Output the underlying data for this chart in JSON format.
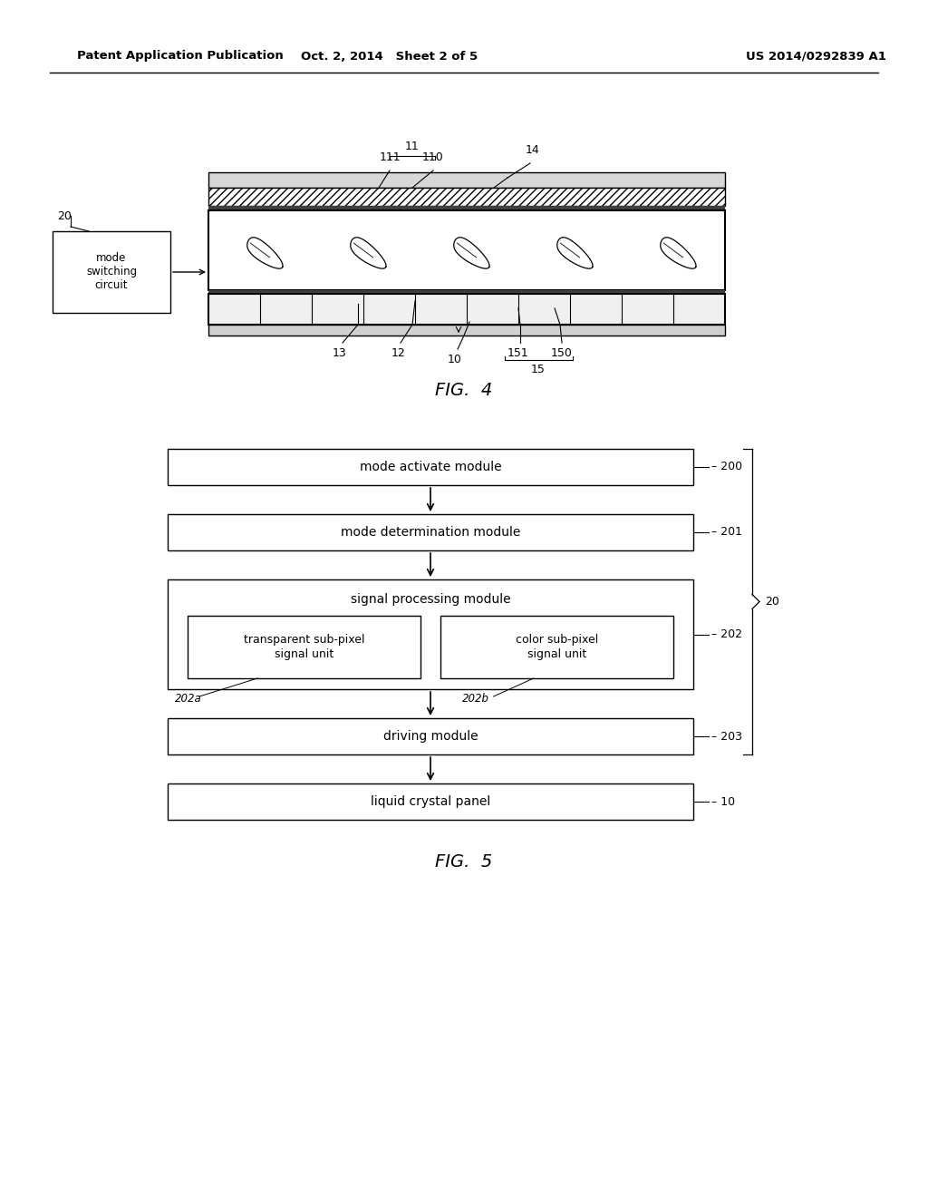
{
  "bg_color": "#ffffff",
  "header_text": "Patent Application Publication",
  "header_date": "Oct. 2, 2014   Sheet 2 of 5",
  "header_patent": "US 2014/0292839 A1",
  "fig4_label": "FIG.  4",
  "fig5_label": "FIG.  5"
}
